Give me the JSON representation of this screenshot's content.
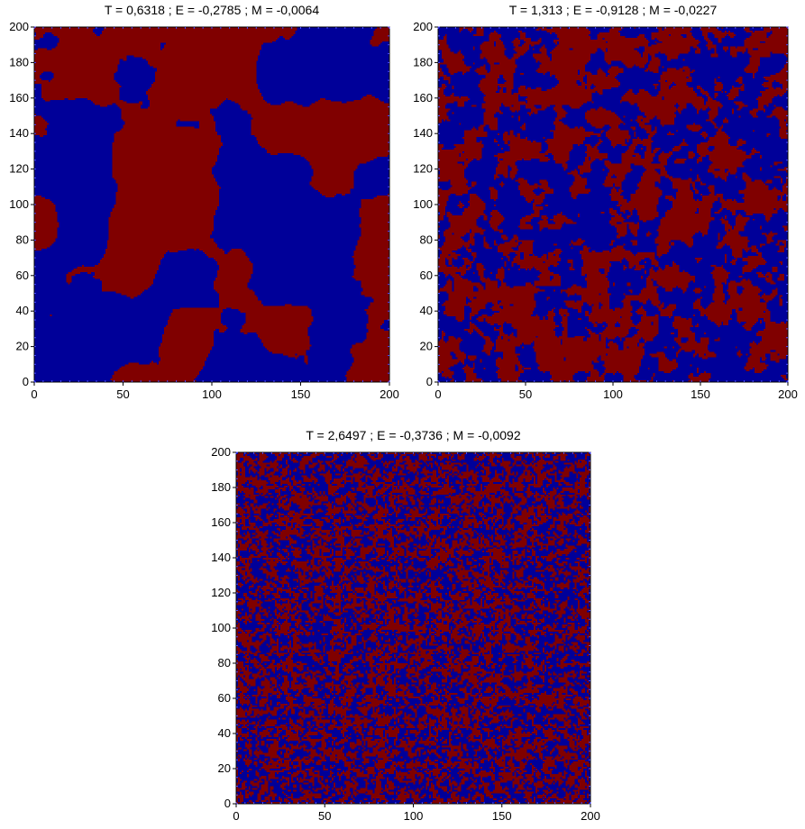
{
  "colors": {
    "spin_up": "#800000",
    "spin_down": "#000099",
    "axis": "#000000",
    "background": "#ffffff"
  },
  "chart_data": [
    {
      "type": "heatmap",
      "title": "T = 0,6318 ; E = -0,2785 ; M = -0,0064",
      "temperature": 0.6318,
      "energy": -0.2785,
      "magnetization": -0.0064,
      "xlim": [
        0,
        200
      ],
      "ylim": [
        0,
        200
      ],
      "x_ticks": [
        "0",
        "50",
        "100",
        "150",
        "200"
      ],
      "y_ticks": [
        "0",
        "20",
        "40",
        "60",
        "80",
        "100",
        "120",
        "140",
        "160",
        "180",
        "200"
      ],
      "lattice_size": [
        200,
        200
      ],
      "values": [
        -1,
        1
      ],
      "pattern": "large coarse domains"
    },
    {
      "type": "heatmap",
      "title": "T = 1,313 ; E = -0,9128 ; M = -0,0227",
      "temperature": 1.313,
      "energy": -0.9128,
      "magnetization": -0.0227,
      "xlim": [
        0,
        200
      ],
      "ylim": [
        0,
        200
      ],
      "x_ticks": [
        "0",
        "50",
        "100",
        "150",
        "200"
      ],
      "y_ticks": [
        "0",
        "20",
        "40",
        "60",
        "80",
        "100",
        "120",
        "140",
        "160",
        "180",
        "200"
      ],
      "lattice_size": [
        200,
        200
      ],
      "values": [
        -1,
        1
      ],
      "pattern": "medium-scale clusters"
    },
    {
      "type": "heatmap",
      "title": "T = 2,6497 ; E = -0,3736 ; M = -0,0092",
      "temperature": 2.6497,
      "energy": -0.3736,
      "magnetization": -0.0092,
      "xlim": [
        0,
        200
      ],
      "ylim": [
        0,
        200
      ],
      "x_ticks": [
        "0",
        "50",
        "100",
        "150",
        "200"
      ],
      "y_ticks": [
        "0",
        "20",
        "40",
        "60",
        "80",
        "100",
        "120",
        "140",
        "160",
        "180",
        "200"
      ],
      "lattice_size": [
        200,
        200
      ],
      "values": [
        -1,
        1
      ],
      "pattern": "fine-grained disorder"
    }
  ]
}
